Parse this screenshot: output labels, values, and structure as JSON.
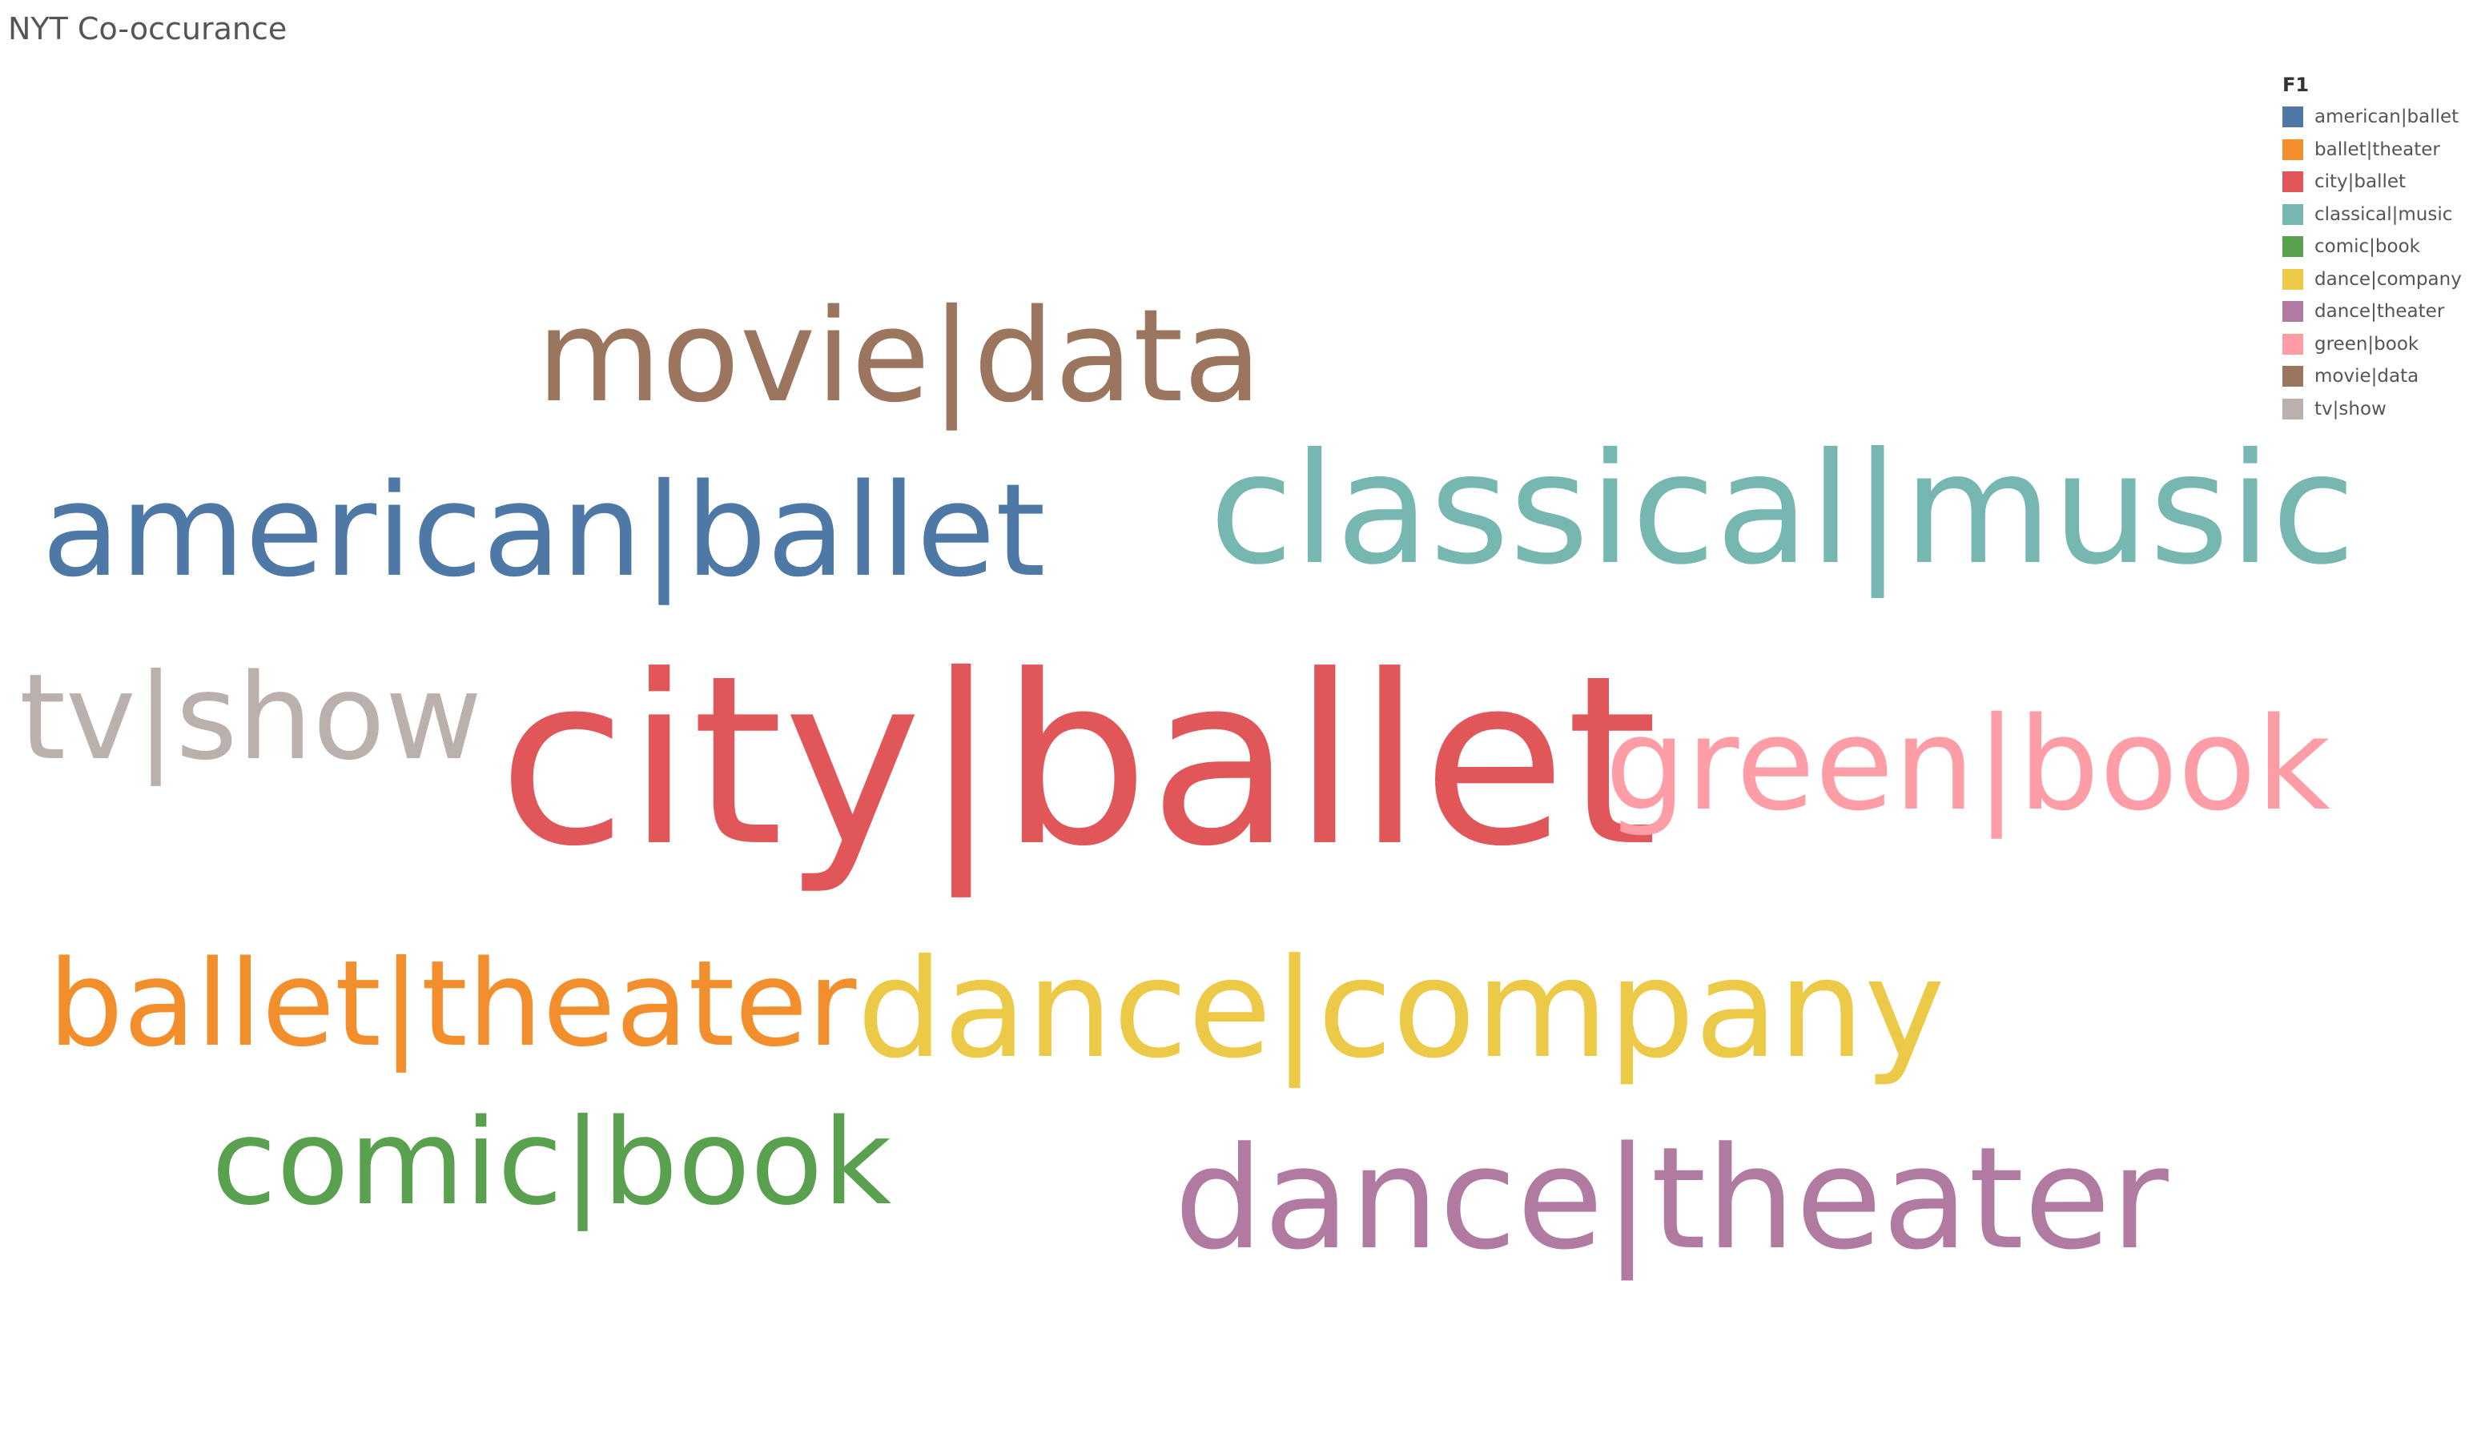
{
  "title": "NYT Co-occurance",
  "chart_data": {
    "type": "word_cloud",
    "title": "NYT Co-occurance",
    "legend": {
      "title": "F1",
      "placement": "top-right",
      "entries": [
        {
          "label": "american|ballet",
          "color": "#4e79a7"
        },
        {
          "label": "ballet|theater",
          "color": "#f28e2b"
        },
        {
          "label": "city|ballet",
          "color": "#e15759"
        },
        {
          "label": "classical|music",
          "color": "#76b7b2"
        },
        {
          "label": "comic|book",
          "color": "#59a14f"
        },
        {
          "label": "dance|company",
          "color": "#edc948"
        },
        {
          "label": "dance|theater",
          "color": "#b07aa1"
        },
        {
          "label": "green|book",
          "color": "#ff9da7"
        },
        {
          "label": "movie|data",
          "color": "#9c755f"
        },
        {
          "label": "tv|show",
          "color": "#bab0ac"
        }
      ]
    },
    "words": [
      {
        "text": "city|ballet",
        "color": "#e15759"
      },
      {
        "text": "classical|music",
        "color": "#76b7b2"
      },
      {
        "text": "dance|theater",
        "color": "#b07aa1"
      },
      {
        "text": "dance|company",
        "color": "#edc948"
      },
      {
        "text": "american|ballet",
        "color": "#4e79a7"
      },
      {
        "text": "movie|data",
        "color": "#9c755f"
      },
      {
        "text": "green|book",
        "color": "#ff9da7"
      },
      {
        "text": "ballet|theater",
        "color": "#f28e2b"
      },
      {
        "text": "comic|book",
        "color": "#59a14f"
      },
      {
        "text": "tv|show",
        "color": "#bab0ac"
      }
    ]
  }
}
